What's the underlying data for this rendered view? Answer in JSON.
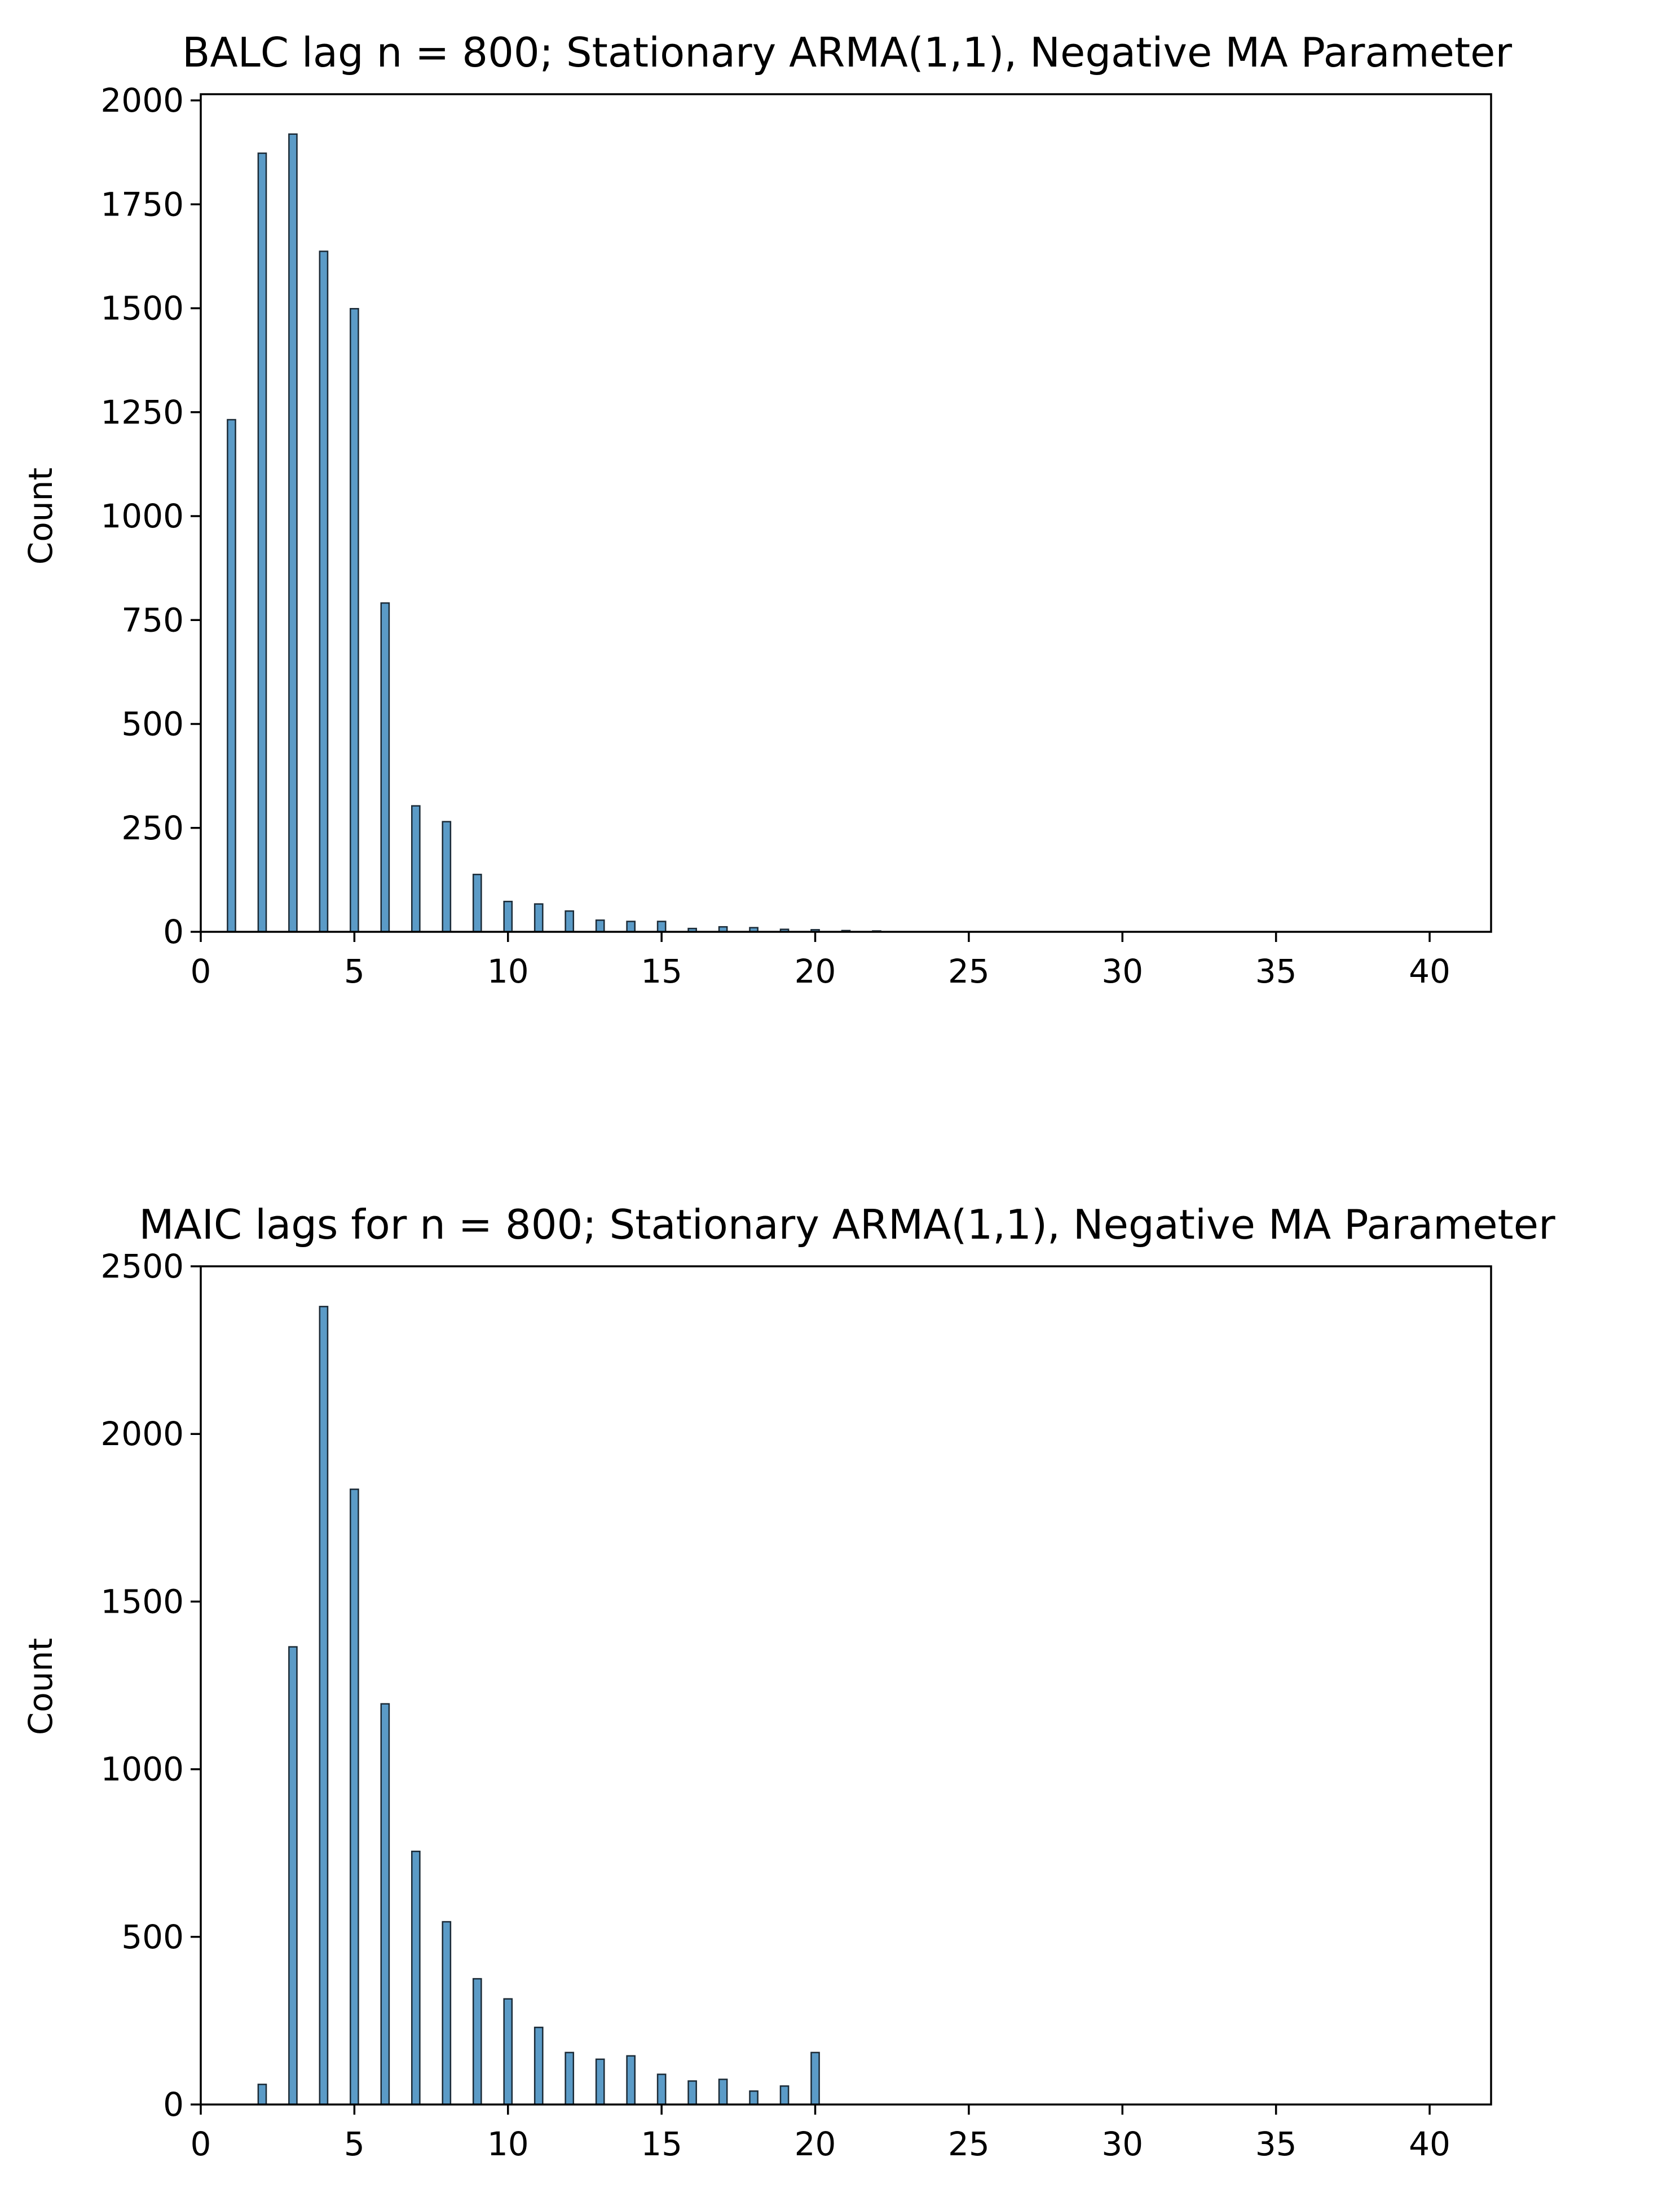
{
  "bar_fill": "#5b9bc7",
  "bar_edge": "#1b2a36",
  "axis_color": "#000000",
  "background": "#ffffff",
  "chart_data": [
    {
      "type": "bar",
      "title": "BALC lag n = 800; Stationary ARMA(1,1), Negative MA Parameter",
      "xlabel": "",
      "ylabel": "Count",
      "xlim": [
        0,
        42
      ],
      "ylim": [
        0,
        2015
      ],
      "xticks": [
        0,
        5,
        10,
        15,
        20,
        25,
        30,
        35,
        40
      ],
      "yticks": [
        0,
        250,
        500,
        750,
        1000,
        1250,
        1500,
        1750,
        2000
      ],
      "grid": false,
      "x": [
        1,
        2,
        3,
        4,
        5,
        6,
        7,
        8,
        9,
        10,
        11,
        12,
        13,
        14,
        15,
        16,
        17,
        18,
        19,
        20,
        21,
        22
      ],
      "values": [
        1232,
        1873,
        1919,
        1637,
        1499,
        791,
        303,
        265,
        138,
        73,
        67,
        50,
        28,
        25,
        25,
        8,
        12,
        10,
        6,
        5,
        3,
        2
      ]
    },
    {
      "type": "bar",
      "title": "MAIC lags for n = 800; Stationary ARMA(1,1), Negative MA Parameter",
      "xlabel": "",
      "ylabel": "Count",
      "xlim": [
        0,
        42
      ],
      "ylim": [
        0,
        2500
      ],
      "xticks": [
        0,
        5,
        10,
        15,
        20,
        25,
        30,
        35,
        40
      ],
      "yticks": [
        0,
        500,
        1000,
        1500,
        2000,
        2500
      ],
      "grid": false,
      "x": [
        2,
        3,
        4,
        5,
        6,
        7,
        8,
        9,
        10,
        11,
        12,
        13,
        14,
        15,
        16,
        17,
        18,
        19,
        20
      ],
      "values": [
        60,
        1365,
        2380,
        1835,
        1195,
        755,
        545,
        375,
        315,
        230,
        155,
        135,
        145,
        90,
        70,
        75,
        40,
        55,
        155
      ]
    }
  ]
}
